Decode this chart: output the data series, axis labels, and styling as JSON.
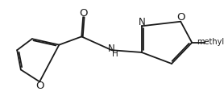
{
  "background_color": "#ffffff",
  "line_color": "#1a1a1a",
  "line_width": 1.3,
  "font_size": 8.0,
  "fig_width": 2.78,
  "fig_height": 1.29,
  "dpi": 100,
  "xlim": [
    -0.3,
    6.8
  ],
  "ylim": [
    0.5,
    3.8
  ],
  "furan_O_label": "O",
  "carbonyl_O_label": "O",
  "amide_N_label": "H",
  "isoxazole_N_label": "N",
  "isoxazole_O_label": "O",
  "methyl_label": "methyl"
}
